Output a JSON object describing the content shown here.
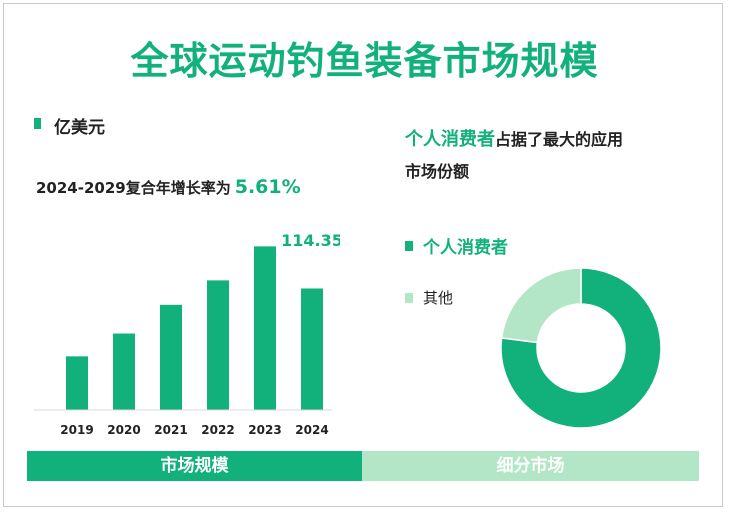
{
  "title": "全球运动钓鱼装备市场规模",
  "unit": "亿美元",
  "cagr": {
    "label": "2024-2029复合年增长率为",
    "value": "5.61%"
  },
  "colors": {
    "primary": "#12b07a",
    "secondary": "#b3e6c6"
  },
  "segment": {
    "highlight": "个人消费者",
    "rest": "占据了最大的应用",
    "line2": "市场份额"
  },
  "legend": [
    {
      "label": "个人消费者",
      "color": "#12b07a"
    },
    {
      "label": "其他",
      "color": "#b3e6c6"
    }
  ],
  "chart_data": [
    {
      "type": "bar",
      "title": "",
      "categories": [
        "2019",
        "2020",
        "2021",
        "2022",
        "2023",
        "2024"
      ],
      "values": [
        50.5,
        72,
        99,
        122,
        154,
        114.35
      ],
      "value_labels": [
        "",
        "",
        "",
        "",
        "",
        "114.35"
      ],
      "ylim": [
        0,
        160
      ],
      "unit": "亿美元"
    },
    {
      "type": "pie",
      "donut": true,
      "labels": [
        "个人消费者",
        "其他"
      ],
      "values": [
        77,
        23
      ]
    }
  ],
  "footer": {
    "left": "市场规模",
    "right": "细分市场"
  }
}
